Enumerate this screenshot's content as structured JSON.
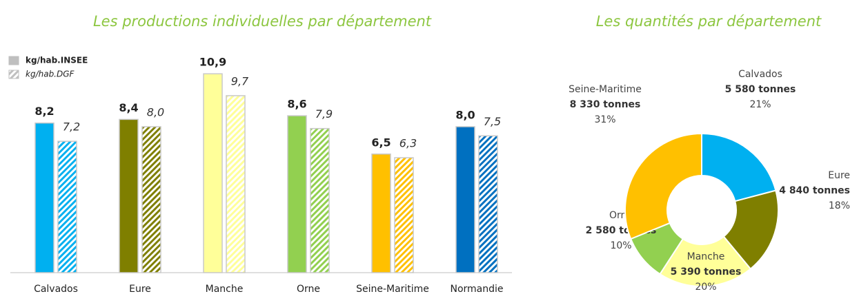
{
  "chart_data": [
    {
      "type": "bar",
      "title": "Les productions individuelles par département",
      "categories": [
        "Calvados",
        "Eure",
        "Manche",
        "Orne",
        "Seine-Maritime",
        "Normandie"
      ],
      "colors": [
        "#00b0f0",
        "#7f7f00",
        "#ffff99",
        "#92d050",
        "#ffc000",
        "#0070c0"
      ],
      "legend": "top-left",
      "series": [
        {
          "name": "kg/hab.INSEE",
          "style": "solid",
          "values": [
            8.2,
            8.4,
            10.9,
            8.6,
            6.5,
            8.0
          ],
          "value_labels": [
            "8,2",
            "8,4",
            "10,9",
            "8,6",
            "6,5",
            "8,0"
          ]
        },
        {
          "name": "kg/hab.DGF",
          "style": "hatched",
          "values": [
            7.2,
            8.0,
            9.7,
            7.9,
            6.3,
            7.5
          ],
          "value_labels": [
            "7,2",
            "8,0",
            "9,7",
            "7,9",
            "6,3",
            "7,5"
          ]
        }
      ]
    },
    {
      "type": "donut",
      "title": "Les quantités par département",
      "categories": [
        "Calvados",
        "Eure",
        "Manche",
        "Orne",
        "Seine-Maritime"
      ],
      "colors": [
        "#00b0f0",
        "#7f7f00",
        "#ffff99",
        "#92d050",
        "#ffc000"
      ],
      "values": [
        5580,
        4840,
        5390,
        2580,
        8330
      ],
      "value_labels": [
        "5 580 tonnes",
        "4 840 tonnes",
        "5 390 tonnes",
        "2 580 tonnes",
        "8 330 tonnes"
      ],
      "shares": [
        21,
        18,
        20,
        10,
        31
      ],
      "share_labels": [
        "21%",
        "18%",
        "20%",
        "10%",
        "31%"
      ]
    }
  ]
}
